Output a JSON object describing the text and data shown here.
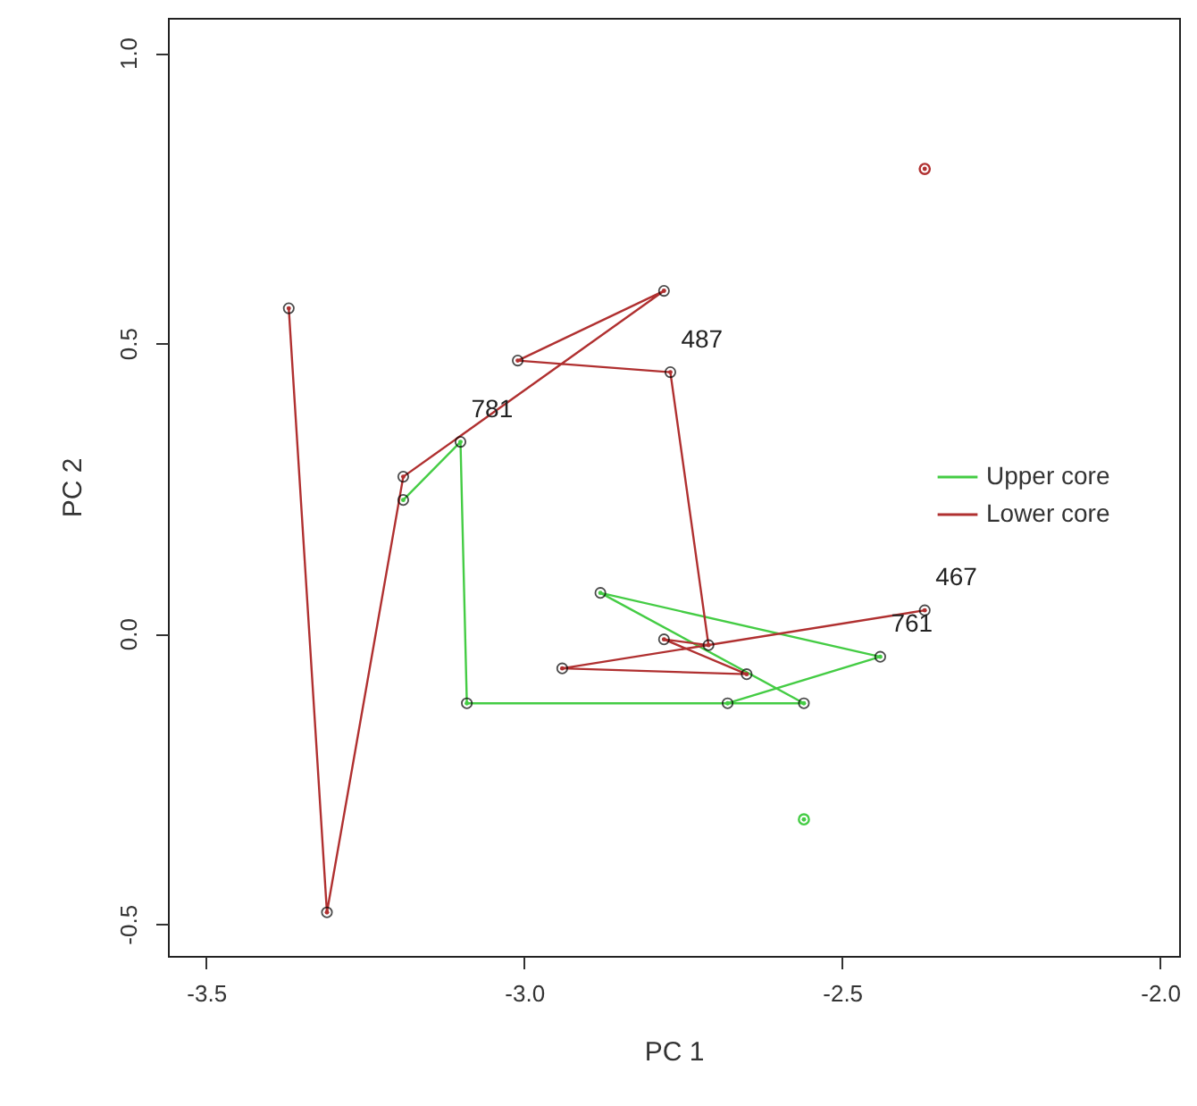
{
  "chart_data": {
    "type": "line",
    "xlabel": "PC 1",
    "ylabel": "PC 2",
    "xlim": [
      -3.56,
      -1.97
    ],
    "ylim": [
      -0.555,
      1.06
    ],
    "xticks": [
      {
        "value": -3.5,
        "label": "-3.5"
      },
      {
        "value": -3.0,
        "label": "-3.0"
      },
      {
        "value": -2.5,
        "label": "-2.5"
      },
      {
        "value": -2.0,
        "label": "-2.0"
      }
    ],
    "yticks": [
      {
        "value": -0.5,
        "label": "-0.5"
      },
      {
        "value": 0.0,
        "label": "0.0"
      },
      {
        "value": 0.5,
        "label": "0.5"
      },
      {
        "value": 1.0,
        "label": "1.0"
      }
    ],
    "marker": "circle",
    "grid": false,
    "legend": "right",
    "series": [
      {
        "name": "Upper core",
        "color": "#44cc44",
        "x": [
          -3.19,
          -3.1,
          -3.09,
          -2.56,
          -2.88,
          -2.44,
          -2.68,
          null,
          -2.56
        ],
        "values": [
          0.23,
          0.33,
          -0.12,
          -0.12,
          0.07,
          -0.04,
          -0.12,
          null,
          -0.32
        ]
      },
      {
        "name": "Lower core",
        "color": "#b03030",
        "x": [
          -3.37,
          -3.31,
          -3.19,
          -2.78,
          -3.01,
          -2.77,
          -2.71,
          -2.78,
          -2.65,
          -2.94,
          -2.37,
          null,
          -2.37
        ],
        "values": [
          0.56,
          -0.48,
          0.27,
          0.59,
          0.47,
          0.45,
          -0.02,
          -0.01,
          -0.07,
          -0.06,
          0.04,
          null,
          0.8
        ]
      }
    ],
    "annotations": [
      {
        "text": "781",
        "x": -3.1,
        "y": 0.33
      },
      {
        "text": "487",
        "x": -2.77,
        "y": 0.45
      },
      {
        "text": "467",
        "x": -2.37,
        "y": 0.04
      },
      {
        "text": "761",
        "x": -2.44,
        "y": -0.04
      }
    ]
  }
}
